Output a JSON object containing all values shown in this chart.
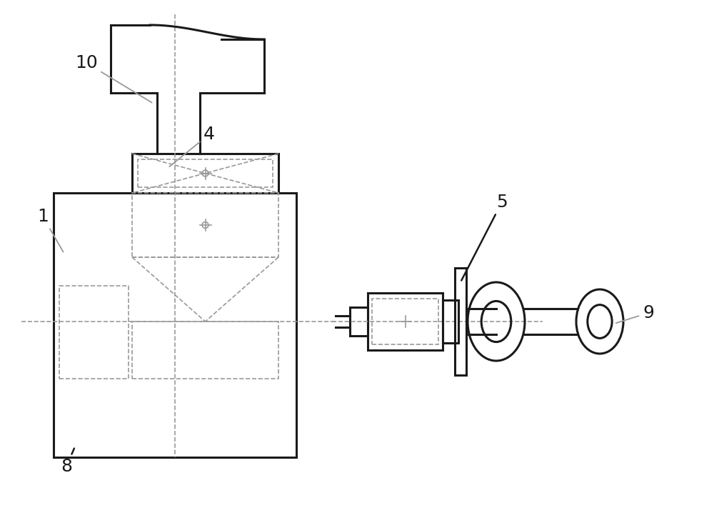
{
  "bg_color": "#ffffff",
  "line_color": "#1a1a1a",
  "dashed_color": "#999999",
  "label_color": "#1a1a1a",
  "figsize": [
    10.0,
    7.18
  ],
  "dpi": 100
}
